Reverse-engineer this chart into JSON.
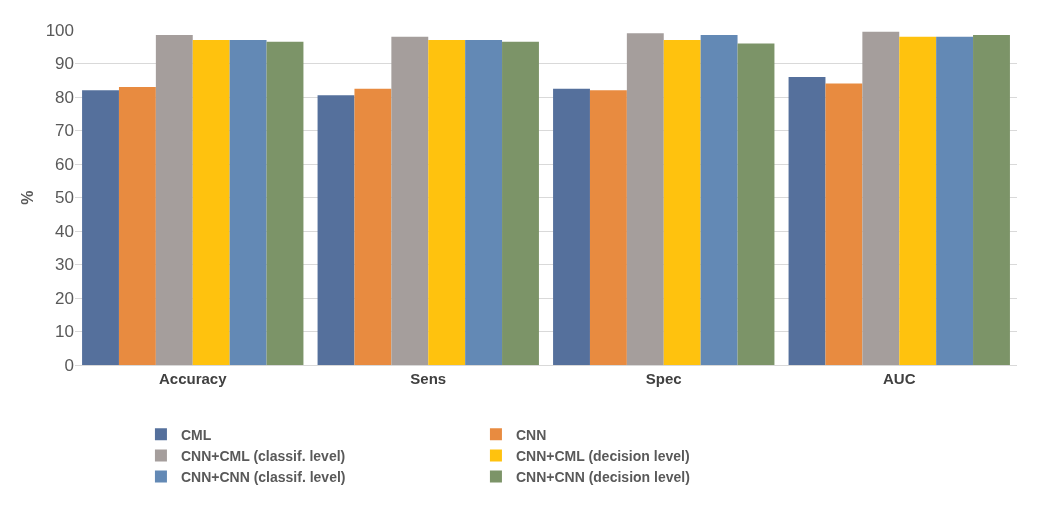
{
  "chart_data": {
    "type": "bar",
    "ylabel": "%",
    "categories": [
      "Accuracy",
      "Sens",
      "Spec",
      "AUC"
    ],
    "series": [
      {
        "name": "CML",
        "color": "#55709c",
        "values": [
          82,
          80.5,
          82.5,
          86
        ]
      },
      {
        "name": "CNN",
        "color": "#e88b40",
        "values": [
          83,
          82.5,
          82,
          84
        ]
      },
      {
        "name": "CNN+CML (classif. level)",
        "color": "#a59e9c",
        "values": [
          98.5,
          98,
          99,
          99.5
        ]
      },
      {
        "name": "CNN+CML (decision level)",
        "color": "#ffc20e",
        "values": [
          97,
          97,
          97,
          98
        ]
      },
      {
        "name": "CNN+CNN (classif. level)",
        "color": "#6389b5",
        "values": [
          97,
          97,
          98.5,
          98
        ]
      },
      {
        "name": "CNN+CNN (decision level)",
        "color": "#7c9468",
        "values": [
          96.5,
          96.5,
          96,
          98.5
        ]
      }
    ],
    "ylim": [
      0,
      100
    ],
    "yticks": [
      0,
      10,
      20,
      30,
      40,
      50,
      60,
      70,
      80,
      90,
      100
    ],
    "grid": "y",
    "legend": "bottom"
  }
}
